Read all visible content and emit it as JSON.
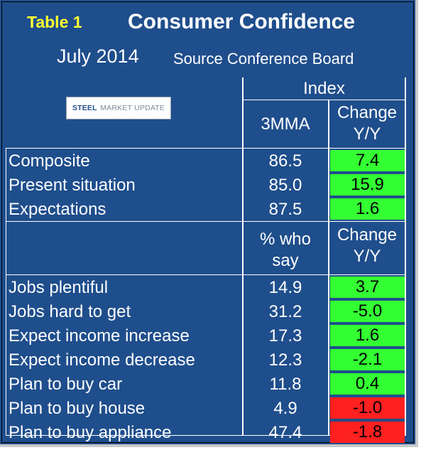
{
  "header": {
    "table_label": "Table 1",
    "title": "Consumer Confidence",
    "date": "July 2014",
    "source": "Source Conference Board",
    "logo_text_1": "STEEL",
    "logo_text_2": "MARKET UPDATE"
  },
  "columns": {
    "group_label": "Index",
    "index_value_label": "3MMA",
    "index_change_label_1": "Change",
    "index_change_label_2": "Y/Y",
    "pct_value_label_1": "% who",
    "pct_value_label_2": "say",
    "pct_change_label_1": "Change",
    "pct_change_label_2": "Y/Y"
  },
  "colors": {
    "positive": "#33ff33",
    "negative": "#ff2020",
    "background": "#1f4e8c"
  },
  "index_rows": [
    {
      "label": "Composite",
      "value": "86.5",
      "change": "7.4",
      "status": "positive"
    },
    {
      "label": "Present situation",
      "value": "85.0",
      "change": "15.9",
      "status": "positive"
    },
    {
      "label": "Expectations",
      "value": "87.5",
      "change": "1.6",
      "status": "positive"
    }
  ],
  "pct_rows": [
    {
      "label": "Jobs plentiful",
      "value": "14.9",
      "change": "3.7",
      "status": "positive"
    },
    {
      "label": "Jobs hard to get",
      "value": "31.2",
      "change": "-5.0",
      "status": "positive"
    },
    {
      "label": "Expect income increase",
      "value": "17.3",
      "change": "1.6",
      "status": "positive"
    },
    {
      "label": "Expect income decrease",
      "value": "12.3",
      "change": "-2.1",
      "status": "positive"
    },
    {
      "label": "Plan to buy car",
      "value": "11.8",
      "change": "0.4",
      "status": "positive"
    },
    {
      "label": "Plan to buy house",
      "value": "4.9",
      "change": "-1.0",
      "status": "negative"
    },
    {
      "label": "Plan to buy appliance",
      "value": "47.4",
      "change": "-1.8",
      "status": "negative"
    }
  ]
}
